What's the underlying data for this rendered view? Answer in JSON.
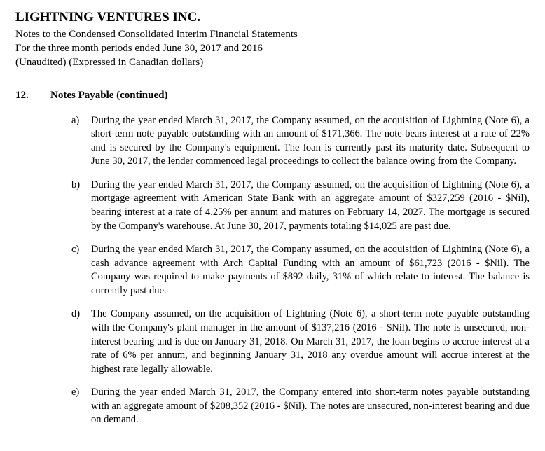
{
  "header": {
    "company": "LIGHTNING VENTURES INC.",
    "subtitle1": "Notes to the Condensed Consolidated Interim Financial Statements",
    "subtitle2": "For the three month periods ended June 30, 2017 and 2016",
    "subtitle3": "(Unaudited) (Expressed in Canadian dollars)"
  },
  "note": {
    "number": "12.",
    "title": "Notes Payable (continued)",
    "items": [
      {
        "letter": "a)",
        "text": "During the year ended March 31, 2017, the Company assumed, on the acquisition of Lightning (Note 6), a short-term note payable outstanding with an amount of $171,366. The note bears interest at a rate of 22% and is secured by the Company's equipment.  The loan is currently past its maturity date. Subsequent to June 30, 2017, the lender commenced legal proceedings to collect the balance owing from the Company."
      },
      {
        "letter": "b)",
        "text": "During the year ended March 31, 2017, the Company assumed, on the acquisition of Lightning (Note 6), a mortgage agreement with American State Bank with an aggregate amount of $327,259 (2016 - $Nil), bearing interest at a rate of 4.25% per annum and matures on February 14, 2027. The mortgage is secured by the Company's warehouse. At June 30, 2017, payments totaling $14,025 are past due."
      },
      {
        "letter": "c)",
        "text": "During the year ended March 31, 2017, the Company assumed, on the acquisition of Lightning (Note 6), a cash advance agreement with Arch Capital Funding with an amount of $61,723 (2016 - $Nil).  The Company was required to make payments of $892 daily, 31% of which relate to interest.  The balance is currently past due."
      },
      {
        "letter": "d)",
        "text": "The Company assumed, on the acquisition of Lightning (Note 6), a short-term note payable outstanding with the Company's plant manager in the amount of $137,216 (2016 - $Nil).  The note is unsecured, non-interest bearing and is due on January 31, 2018. On March 31, 2017, the loan begins to accrue interest at a rate of 6% per annum, and beginning January 31, 2018 any overdue amount will accrue interest at the highest rate legally allowable."
      },
      {
        "letter": "e)",
        "text": "During the year ended March 31, 2017, the Company entered into short-term notes payable outstanding with an aggregate amount of $208,352 (2016 - $Nil).  The notes are unsecured, non-interest bearing and due on demand."
      }
    ]
  }
}
